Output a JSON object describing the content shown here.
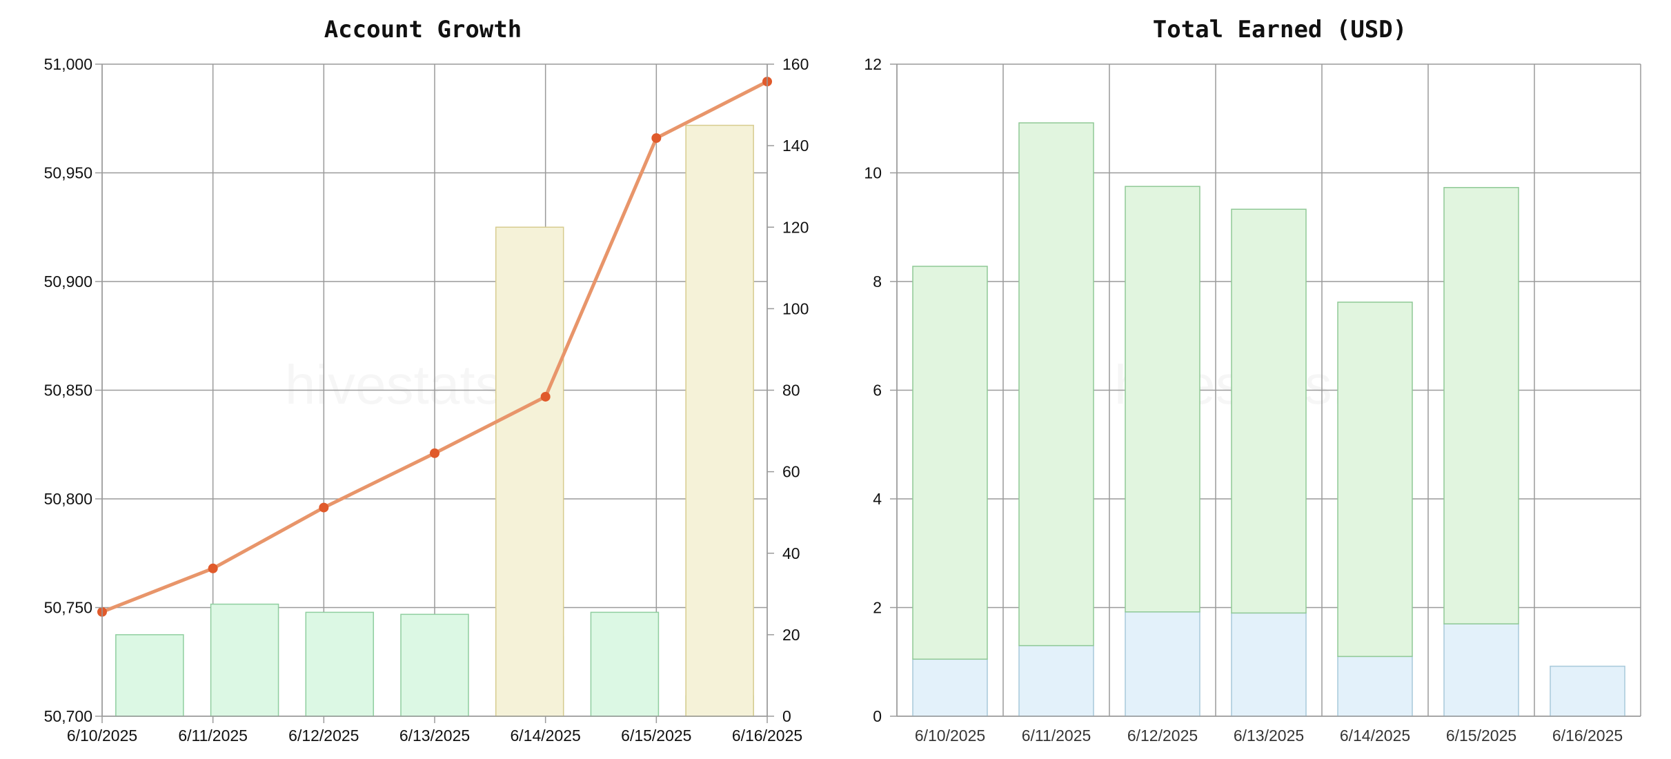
{
  "watermark": "hivestats.io",
  "chart_data": [
    {
      "type": "bar+line",
      "title": "Account Growth",
      "x": [
        "6/10/2025",
        "6/11/2025",
        "6/12/2025",
        "6/13/2025",
        "6/14/2025",
        "6/15/2025",
        "6/16/2025"
      ],
      "y_left": {
        "ylim": [
          50700,
          51000
        ],
        "ticks": [
          50700,
          50750,
          50800,
          50850,
          50900,
          50950,
          51000
        ],
        "tick_labels": [
          "50,700",
          "50,750",
          "50,800",
          "50,850",
          "50,900",
          "50,950",
          "51,000"
        ]
      },
      "y_right": {
        "ylim": [
          0,
          160
        ],
        "ticks": [
          0,
          20,
          40,
          60,
          80,
          100,
          120,
          140,
          160
        ],
        "tick_labels": [
          "0",
          "20",
          "40",
          "60",
          "80",
          "100",
          "120",
          "140",
          "160"
        ]
      },
      "line_series": {
        "axis": "left",
        "color": "#e8956a",
        "point_color": "#e05a2b",
        "values": [
          50748,
          50768,
          50796,
          50821,
          50847,
          50966,
          50992
        ]
      },
      "bar_series": [
        {
          "axis": "right",
          "color": "#dcf8e4",
          "stroke": "#8fce9f",
          "values": [
            20,
            27.5,
            25.5,
            25,
            19.5,
            25.5,
            5
          ]
        },
        {
          "axis": "right",
          "color": "#f5f2d8",
          "stroke": "#d7cc8f",
          "values": [
            0,
            0,
            0,
            0,
            120,
            0,
            145
          ]
        }
      ],
      "grid": true
    },
    {
      "type": "bar",
      "stacked": true,
      "title": "Total Earned (USD)",
      "categories": [
        "6/10/2025",
        "6/11/2025",
        "6/12/2025",
        "6/13/2025",
        "6/14/2025",
        "6/15/2025",
        "6/16/2025"
      ],
      "ylim": [
        0,
        12
      ],
      "ticks": [
        0,
        2,
        4,
        6,
        8,
        10,
        12
      ],
      "tick_labels": [
        "0",
        "2",
        "4",
        "6",
        "8",
        "10",
        "12"
      ],
      "series": [
        {
          "color": "#e3f1fa",
          "stroke": "#a7c9da",
          "values": [
            1.05,
            1.3,
            1.92,
            1.9,
            1.1,
            1.7,
            0.92
          ]
        },
        {
          "color": "#e1f5df",
          "stroke": "#8fc996",
          "values": [
            7.23,
            9.62,
            7.83,
            7.43,
            6.52,
            8.03,
            0
          ]
        }
      ],
      "grid": true
    }
  ]
}
